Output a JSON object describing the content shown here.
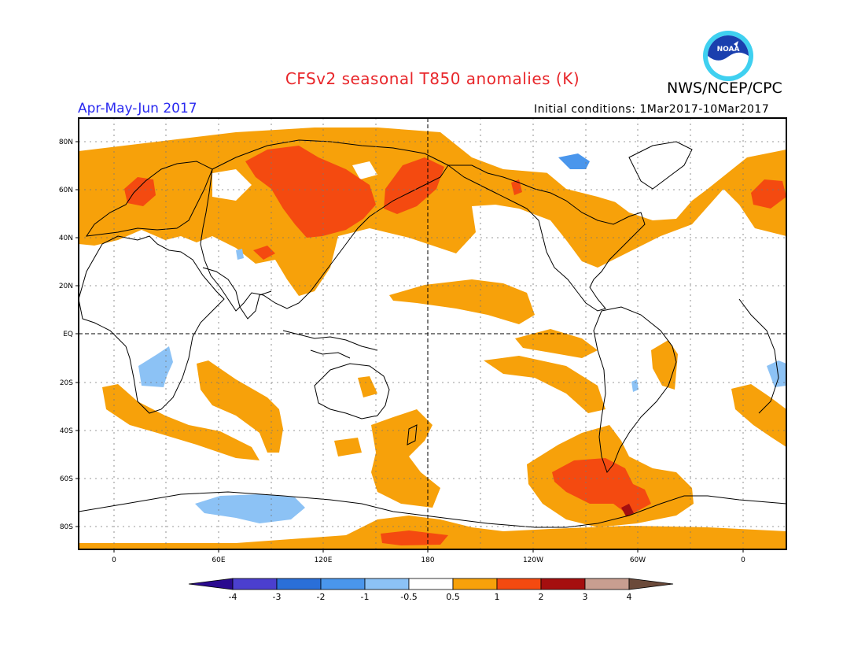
{
  "header": {
    "title": "CFSv2 seasonal T850 anomalies (K)",
    "period": "Apr-May-Jun 2017",
    "initial_conditions": "Initial conditions: 1Mar2017-10Mar2017",
    "agency": "NWS/NCEP/CPC",
    "logo_text": "NOAA"
  },
  "axes": {
    "lat_labels": [
      "80N",
      "60N",
      "40N",
      "20N",
      "EQ",
      "20S",
      "40S",
      "60S",
      "80S"
    ],
    "lon_labels": [
      "0",
      "60E",
      "120E",
      "180",
      "120W",
      "60W",
      "0"
    ]
  },
  "colorbar": {
    "labels": [
      "-4",
      "-3",
      "-2",
      "-1",
      "-0.5",
      "0.5",
      "1",
      "2",
      "3",
      "4"
    ],
    "colors": [
      "#2a0a8f",
      "#4b3fcf",
      "#2a6fd8",
      "#4a96ec",
      "#8cc2f5",
      "#ffffff",
      "#f7a10a",
      "#f44a10",
      "#a50f0f",
      "#c89e90",
      "#6b4a3a"
    ]
  }
}
